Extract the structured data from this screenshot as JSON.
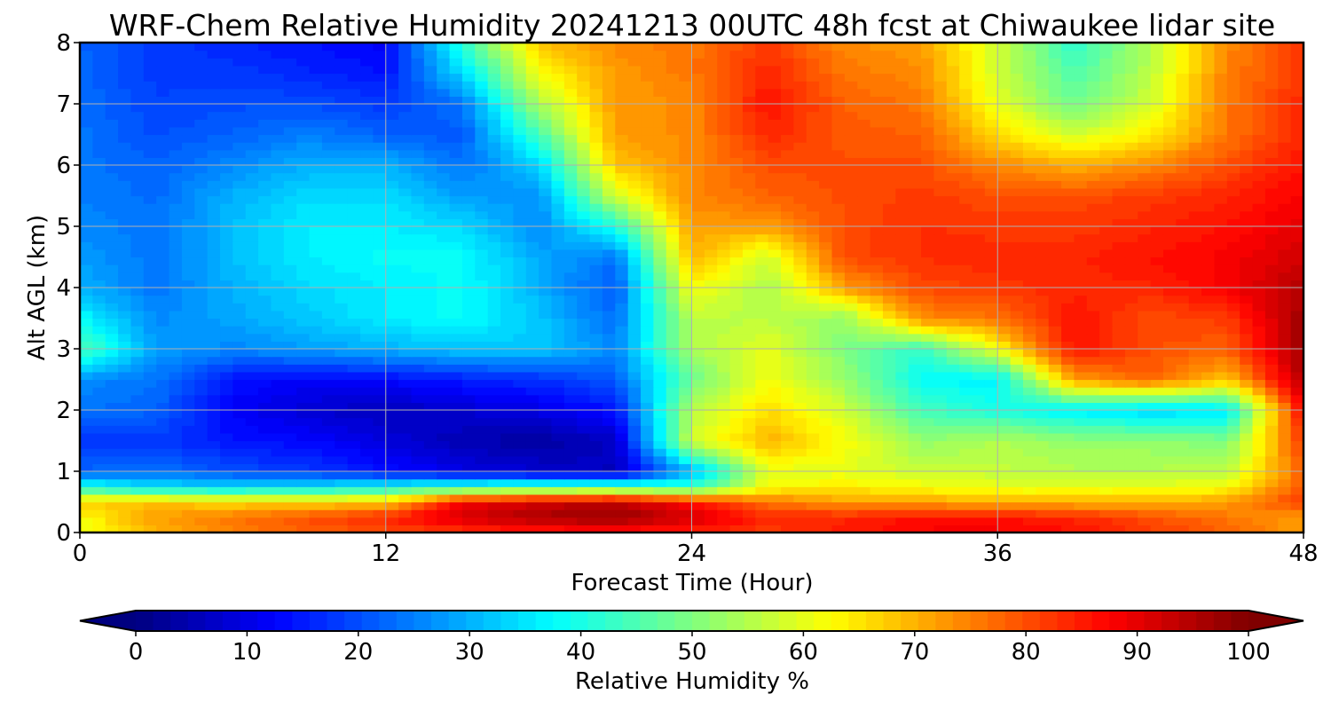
{
  "chart_data": {
    "type": "heatmap",
    "title": "WRF-Chem Relative Humidity 20241213 00UTC 48h fcst at Chiwaukee lidar site",
    "xlabel": "Forecast Time (Hour)",
    "ylabel": "Alt AGL (km)",
    "xlim": [
      0,
      48
    ],
    "ylim": [
      0,
      8
    ],
    "xticks": [
      0,
      12,
      24,
      36,
      48
    ],
    "yticks": [
      0,
      1,
      2,
      3,
      4,
      5,
      6,
      7,
      8
    ],
    "grid": true,
    "colormap": "jet",
    "x": [
      0,
      3,
      6,
      9,
      12,
      15,
      18,
      21,
      24,
      27,
      30,
      33,
      36,
      39,
      42,
      45,
      48
    ],
    "y": [
      0,
      0.25,
      0.5,
      0.75,
      1,
      1.5,
      2,
      2.5,
      3,
      3.5,
      4,
      4.5,
      5,
      5.5,
      6,
      6.5,
      7,
      7.5,
      8
    ],
    "z": [
      [
        60,
        70,
        75,
        78,
        80,
        82,
        84,
        85,
        84,
        82,
        85,
        88,
        88,
        86,
        82,
        78,
        72
      ],
      [
        62,
        72,
        76,
        80,
        84,
        92,
        96,
        98,
        92,
        84,
        84,
        86,
        86,
        84,
        80,
        76,
        72
      ],
      [
        68,
        68,
        66,
        66,
        68,
        88,
        92,
        94,
        86,
        76,
        72,
        72,
        70,
        70,
        70,
        72,
        82
      ],
      [
        40,
        34,
        34,
        35,
        38,
        42,
        44,
        44,
        42,
        62,
        64,
        62,
        60,
        60,
        60,
        62,
        80
      ],
      [
        22,
        24,
        20,
        18,
        14,
        10,
        8,
        6,
        30,
        60,
        60,
        57,
        57,
        55,
        55,
        56,
        78
      ],
      [
        18,
        18,
        14,
        13,
        9,
        5,
        3,
        7,
        58,
        70,
        62,
        52,
        55,
        52,
        52,
        50,
        82
      ],
      [
        24,
        22,
        12,
        8,
        6,
        8,
        10,
        14,
        55,
        66,
        58,
        44,
        40,
        36,
        33,
        35,
        88
      ],
      [
        26,
        24,
        14,
        12,
        13,
        15,
        17,
        21,
        48,
        62,
        52,
        38,
        36,
        72,
        78,
        68,
        95
      ],
      [
        46,
        28,
        26,
        28,
        30,
        32,
        32,
        26,
        54,
        60,
        50,
        42,
        62,
        86,
        80,
        78,
        97
      ],
      [
        38,
        26,
        29,
        32,
        36,
        38,
        32,
        23,
        56,
        56,
        52,
        74,
        76,
        86,
        80,
        82,
        97
      ],
      [
        30,
        24,
        30,
        34,
        36,
        38,
        30,
        21,
        62,
        54,
        72,
        80,
        82,
        84,
        84,
        88,
        95
      ],
      [
        28,
        24,
        31,
        36,
        38,
        38,
        29,
        24,
        70,
        58,
        80,
        83,
        84,
        84,
        86,
        88,
        92
      ],
      [
        26,
        24,
        31,
        36,
        36,
        34,
        26,
        40,
        72,
        72,
        80,
        83,
        82,
        82,
        84,
        86,
        90
      ],
      [
        25,
        23,
        30,
        34,
        34,
        28,
        27,
        58,
        74,
        78,
        80,
        82,
        80,
        80,
        82,
        84,
        88
      ],
      [
        24,
        22,
        26,
        30,
        30,
        24,
        33,
        68,
        74,
        80,
        80,
        80,
        74,
        70,
        74,
        80,
        86
      ],
      [
        24,
        20,
        22,
        25,
        22,
        21,
        44,
        72,
        74,
        84,
        79,
        78,
        66,
        58,
        64,
        76,
        84
      ],
      [
        23,
        19,
        20,
        20,
        18,
        24,
        54,
        72,
        74,
        86,
        78,
        76,
        60,
        48,
        58,
        76,
        84
      ],
      [
        23,
        18,
        18,
        16,
        14,
        34,
        62,
        72,
        76,
        84,
        76,
        74,
        58,
        45,
        56,
        75,
        82
      ],
      [
        22,
        18,
        16,
        14,
        12,
        42,
        68,
        74,
        76,
        82,
        74,
        72,
        58,
        42,
        55,
        74,
        82
      ]
    ],
    "colorbar": {
      "label": "Relative Humidity %",
      "min": 0,
      "max": 100,
      "ticks": [
        0,
        10,
        20,
        30,
        40,
        50,
        60,
        70,
        80,
        90,
        100
      ],
      "extend": "both"
    }
  }
}
